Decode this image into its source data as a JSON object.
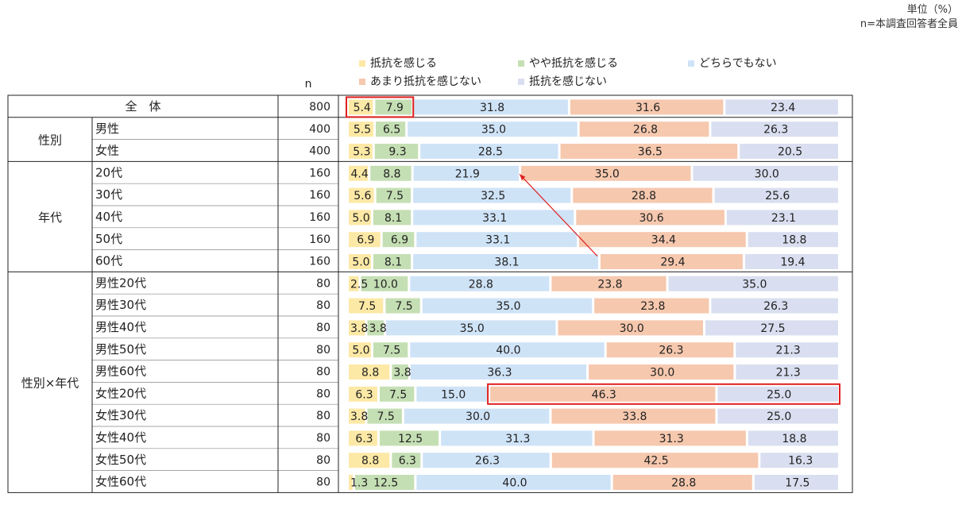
{
  "header": {
    "unit_note": "単位（%）",
    "base_note": "n=本調査回答者全員"
  },
  "colors": {
    "抵抗を感じる": "#fde9a6",
    "やや抵抗を感じる": "#c5dfb4",
    "どちらでもない": "#cfe3f7",
    "あまり抵抗を感じない": "#f6c8ae",
    "抵抗を感じない": "#d9dff0",
    "highlight": "#e02020",
    "arrow": "#e02020"
  },
  "chart_data": {
    "type": "bar",
    "orientation": "horizontal",
    "stacked": true,
    "percent_stacked": true,
    "xlim": [
      0,
      100
    ],
    "n_label": "n",
    "legend": [
      "抵抗を感じる",
      "やや抵抗を感じる",
      "どちらでもない",
      "あまり抵抗を感じない",
      "抵抗を感じない"
    ],
    "groups": [
      {
        "name": "全　体",
        "rows": [
          "全　体"
        ]
      },
      {
        "name": "性別",
        "rows": [
          "男性",
          "女性"
        ]
      },
      {
        "name": "年代",
        "rows": [
          "20代",
          "30代",
          "40代",
          "50代",
          "60代"
        ]
      },
      {
        "name": "性別×年代",
        "rows": [
          "男性20代",
          "男性30代",
          "男性40代",
          "男性50代",
          "男性60代",
          "女性20代",
          "女性30代",
          "女性40代",
          "女性50代",
          "女性60代"
        ]
      }
    ],
    "rows": [
      {
        "label": "全　体",
        "n": "800",
        "values": [
          "5.4",
          "7.9",
          "31.8",
          "31.6",
          "23.4"
        ]
      },
      {
        "label": "男性",
        "n": "400",
        "values": [
          "5.5",
          "6.5",
          "35.0",
          "26.8",
          "26.3"
        ]
      },
      {
        "label": "女性",
        "n": "400",
        "values": [
          "5.3",
          "9.3",
          "28.5",
          "36.5",
          "20.5"
        ]
      },
      {
        "label": "20代",
        "n": "160",
        "values": [
          "4.4",
          "8.8",
          "21.9",
          "35.0",
          "30.0"
        ]
      },
      {
        "label": "30代",
        "n": "160",
        "values": [
          "5.6",
          "7.5",
          "32.5",
          "28.8",
          "25.6"
        ]
      },
      {
        "label": "40代",
        "n": "160",
        "values": [
          "5.0",
          "8.1",
          "33.1",
          "30.6",
          "23.1"
        ]
      },
      {
        "label": "50代",
        "n": "160",
        "values": [
          "6.9",
          "6.9",
          "33.1",
          "34.4",
          "18.8"
        ]
      },
      {
        "label": "60代",
        "n": "160",
        "values": [
          "5.0",
          "8.1",
          "38.1",
          "29.4",
          "19.4"
        ]
      },
      {
        "label": "男性20代",
        "n": "80",
        "values": [
          "2.5",
          "10.0",
          "28.8",
          "23.8",
          "35.0"
        ]
      },
      {
        "label": "男性30代",
        "n": "80",
        "values": [
          "7.5",
          "7.5",
          "35.0",
          "23.8",
          "26.3"
        ]
      },
      {
        "label": "男性40代",
        "n": "80",
        "values": [
          "3.8",
          "3.8",
          "35.0",
          "30.0",
          "27.5"
        ]
      },
      {
        "label": "男性50代",
        "n": "80",
        "values": [
          "5.0",
          "7.5",
          "40.0",
          "26.3",
          "21.3"
        ]
      },
      {
        "label": "男性60代",
        "n": "80",
        "values": [
          "8.8",
          "3.8",
          "36.3",
          "30.0",
          "21.3"
        ]
      },
      {
        "label": "女性20代",
        "n": "80",
        "values": [
          "6.3",
          "7.5",
          "15.0",
          "46.3",
          "25.0"
        ]
      },
      {
        "label": "女性30代",
        "n": "80",
        "values": [
          "3.8",
          "7.5",
          "30.0",
          "33.8",
          "25.0"
        ]
      },
      {
        "label": "女性40代",
        "n": "80",
        "values": [
          "6.3",
          "12.5",
          "31.3",
          "31.3",
          "18.8"
        ]
      },
      {
        "label": "女性50代",
        "n": "80",
        "values": [
          "8.8",
          "6.3",
          "26.3",
          "42.5",
          "16.3"
        ]
      },
      {
        "label": "女性60代",
        "n": "80",
        "values": [
          "1.3",
          "12.5",
          "40.0",
          "28.8",
          "17.5"
        ]
      }
    ],
    "highlights": [
      {
        "row": "全　体",
        "from_segment": 0,
        "to_segment": 1
      },
      {
        "row": "女性20代",
        "from_segment": 3,
        "to_segment": 4
      }
    ],
    "annotations": [
      {
        "type": "arrow",
        "from": {
          "row": "60代",
          "segment": 3
        },
        "to": {
          "row": "20代",
          "segment": 2
        }
      }
    ]
  }
}
